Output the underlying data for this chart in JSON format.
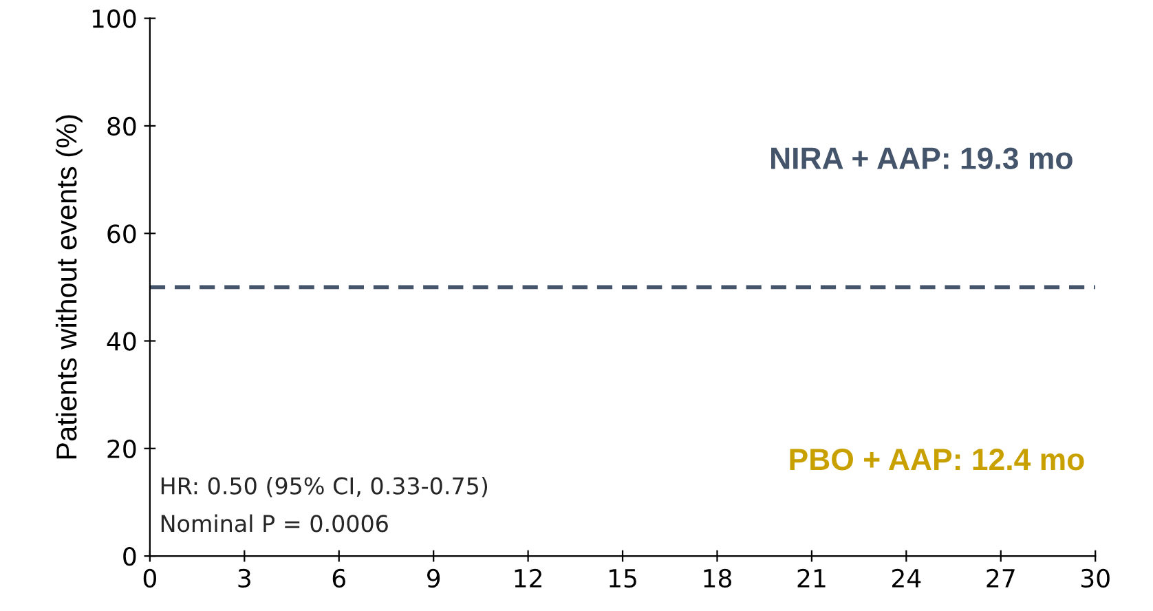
{
  "chart_data": {
    "type": "line",
    "ylabel": "Patients without events (%)",
    "xlim": [
      0,
      30
    ],
    "xticks": [
      0,
      3,
      6,
      9,
      12,
      15,
      18,
      21,
      24,
      27,
      30
    ],
    "ylim": [
      0,
      100
    ],
    "yticks": [
      0,
      20,
      40,
      60,
      80,
      100
    ],
    "ref_lines": [
      {
        "axis": "y",
        "value": 50,
        "color": "#44546a",
        "line_style": "dashed"
      }
    ],
    "annotations": [
      "NIRA + AAP: 19.3 mo",
      "PBO + AAP: 12.4 mo",
      "HR: 0.50 (95% CI, 0.33-0.75)",
      "Nominal P = 0.0006"
    ],
    "grid": false
  }
}
